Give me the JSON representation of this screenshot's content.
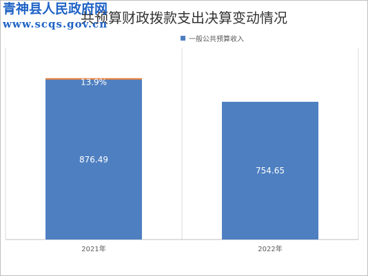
{
  "watermark": {
    "line1": "青神县人民政府网",
    "line2": "www.scqs.gov.cn"
  },
  "colors": {
    "series_primary": "#4e7fc1",
    "series_secondary": "#ed7d31",
    "gridline": "#d9d9d9",
    "axis": "#bfbfbf"
  },
  "chart_data": {
    "type": "bar",
    "stacked": true,
    "title": "共预算财政拨款支出决算变动情况",
    "categories": [
      "2021年",
      "2022年"
    ],
    "series": [
      {
        "name": "一般公共预算收入",
        "values": [
          876.49,
          754.65
        ],
        "labels": [
          "876.49",
          "754.65"
        ]
      },
      {
        "values": [
          13.9,
          0
        ],
        "labels": [
          "13.9%",
          ""
        ]
      }
    ],
    "legend": {
      "position": "top"
    },
    "grid": {
      "vertical": true
    }
  }
}
